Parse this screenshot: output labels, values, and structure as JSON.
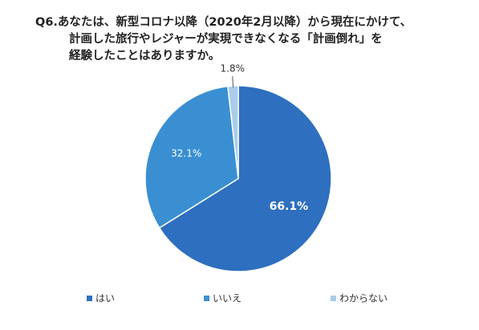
{
  "chart_data": {
    "type": "pie",
    "title": [
      "Q6.あなたは、新型コロナ以降（2020年2月以降）から現在にかけて、",
      "計画した旅行やレジャーが実現できなくなる「計画倒れ」を",
      "経験したことはありますか。"
    ],
    "categories": [
      "はい",
      "いいえ",
      "わからない"
    ],
    "values": [
      66.1,
      32.1,
      1.8
    ],
    "value_labels": [
      "66.1%",
      "32.1%",
      "1.8%"
    ],
    "colors": [
      "#2e6fbf",
      "#3a8fd2",
      "#a9cdea"
    ],
    "legend": "bottom"
  }
}
